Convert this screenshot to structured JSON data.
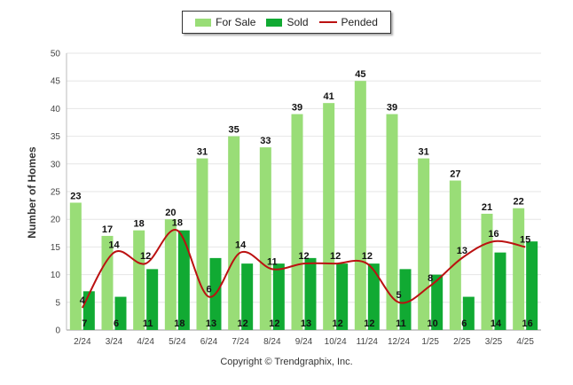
{
  "chart_data": {
    "type": "bar",
    "categories": [
      "2/24",
      "3/24",
      "4/24",
      "5/24",
      "6/24",
      "7/24",
      "8/24",
      "9/24",
      "10/24",
      "11/24",
      "12/24",
      "1/25",
      "2/25",
      "3/25",
      "4/25"
    ],
    "series": [
      {
        "name": "For Sale",
        "type": "bar",
        "color": "#99dd77",
        "values": [
          23,
          17,
          18,
          20,
          31,
          35,
          33,
          39,
          41,
          45,
          39,
          31,
          27,
          21,
          22
        ]
      },
      {
        "name": "Sold",
        "type": "bar",
        "color": "#11aa33",
        "values": [
          7,
          6,
          11,
          18,
          13,
          12,
          12,
          13,
          12,
          12,
          11,
          10,
          6,
          14,
          16
        ]
      },
      {
        "name": "Pended",
        "type": "line",
        "color": "#bb1111",
        "values": [
          4,
          14,
          12,
          18,
          6,
          14,
          11,
          12,
          12,
          12,
          5,
          8,
          13,
          16,
          15
        ]
      }
    ],
    "ylabel": "Number of Homes",
    "xlabel": "",
    "ylim": [
      0,
      50
    ],
    "yticks": [
      0,
      5,
      10,
      15,
      20,
      25,
      30,
      35,
      40,
      45,
      50
    ],
    "grid": true,
    "legend_position": "top-center"
  },
  "footer": {
    "copyright": "Copyright © Trendgraphix, Inc."
  }
}
